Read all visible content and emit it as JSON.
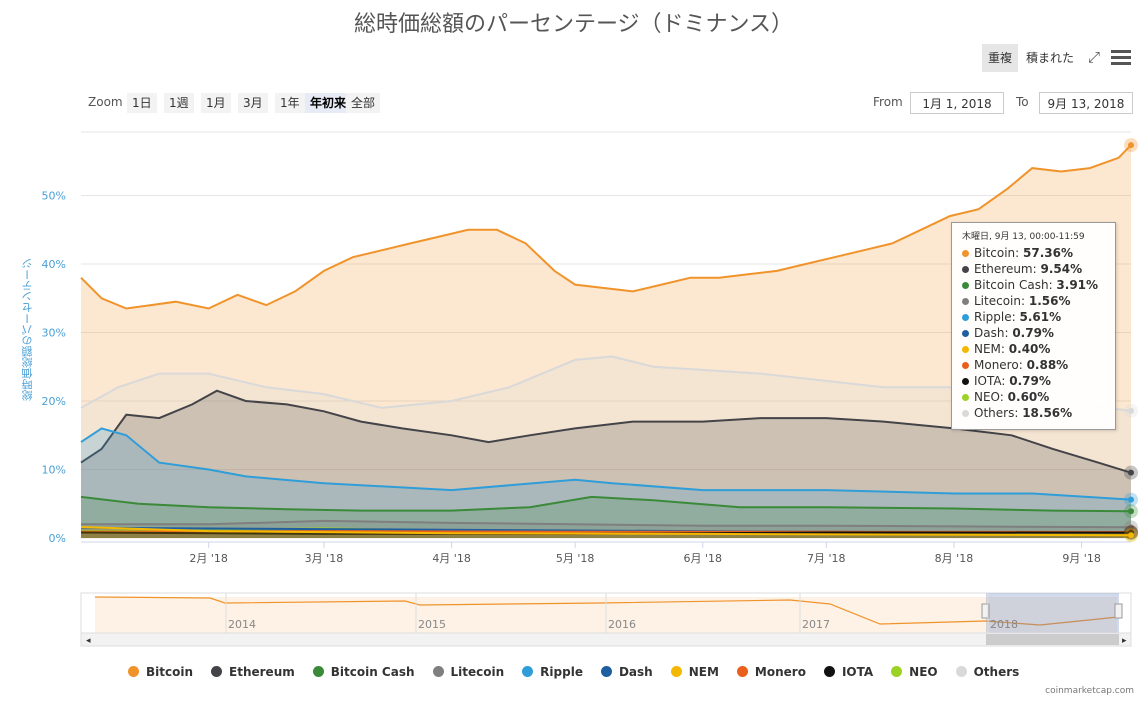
{
  "title": "総時価総額のパーセンテージ（ドミナンス）",
  "toolbar": {
    "overlap_label": "重複",
    "stacked_label": "積まれた",
    "fullscreen_icon": "fullscreen-icon",
    "menu_icon": "hamburger-menu-icon"
  },
  "zoom": {
    "label": "Zoom",
    "buttons": [
      "1日",
      "1週",
      "1月",
      "3月",
      "1年",
      "年初来",
      "全部"
    ],
    "active": "年初来"
  },
  "range": {
    "from_label": "From",
    "from_value": "1月 1, 2018",
    "to_label": "To",
    "to_value": "9月 13, 2018"
  },
  "tooltip": {
    "header": "木曜日, 9月 13, 00:00-11:59",
    "rows": [
      {
        "name": "Bitcoin",
        "value": "57.36%"
      },
      {
        "name": "Ethereum",
        "value": "9.54%"
      },
      {
        "name": "Bitcoin Cash",
        "value": "3.91%"
      },
      {
        "name": "Litecoin",
        "value": "1.56%"
      },
      {
        "name": "Ripple",
        "value": "5.61%"
      },
      {
        "name": "Dash",
        "value": "0.79%"
      },
      {
        "name": "NEM",
        "value": "0.40%"
      },
      {
        "name": "Monero",
        "value": "0.88%"
      },
      {
        "name": "IOTA",
        "value": "0.79%"
      },
      {
        "name": "NEO",
        "value": "0.60%"
      },
      {
        "name": "Others",
        "value": "18.56%"
      }
    ]
  },
  "navigator_years": [
    "2014",
    "2015",
    "2016",
    "2017",
    "2018"
  ],
  "credit": "coinmarketcap.com",
  "chart_data": {
    "type": "area",
    "title": "総時価総額のパーセンテージ（ドミナンス）",
    "ylabel": "総時価総額のパーセンテージ",
    "xlabel": "",
    "x_range": [
      "2018-01-01",
      "2018-09-13"
    ],
    "x_ticks": [
      "2月 '18",
      "3月 '18",
      "4月 '18",
      "5月 '18",
      "6月 '18",
      "7月 '18",
      "8月 '18",
      "9月 '18"
    ],
    "x_tick_dates": [
      "2018-02-01",
      "2018-03-01",
      "2018-04-01",
      "2018-05-01",
      "2018-06-01",
      "2018-07-01",
      "2018-08-01",
      "2018-09-01"
    ],
    "y_ticks": [
      "0%",
      "10%",
      "20%",
      "30%",
      "40%",
      "50%"
    ],
    "ylim": [
      0,
      60
    ],
    "grid": true,
    "legend_position": "bottom",
    "series": [
      {
        "name": "Bitcoin",
        "color": "#f0932b",
        "points": [
          [
            "2018-01-01",
            38
          ],
          [
            "2018-01-06",
            35
          ],
          [
            "2018-01-12",
            33.5
          ],
          [
            "2018-01-18",
            34
          ],
          [
            "2018-01-24",
            34.5
          ],
          [
            "2018-02-01",
            33.5
          ],
          [
            "2018-02-08",
            35.5
          ],
          [
            "2018-02-15",
            34
          ],
          [
            "2018-02-22",
            36
          ],
          [
            "2018-03-01",
            39
          ],
          [
            "2018-03-08",
            41
          ],
          [
            "2018-03-15",
            42
          ],
          [
            "2018-03-22",
            43
          ],
          [
            "2018-03-29",
            44
          ],
          [
            "2018-04-05",
            45
          ],
          [
            "2018-04-12",
            45
          ],
          [
            "2018-04-19",
            43
          ],
          [
            "2018-04-26",
            39
          ],
          [
            "2018-05-01",
            37
          ],
          [
            "2018-05-08",
            36.5
          ],
          [
            "2018-05-15",
            36
          ],
          [
            "2018-05-22",
            37
          ],
          [
            "2018-05-29",
            38
          ],
          [
            "2018-06-05",
            38
          ],
          [
            "2018-06-12",
            38.5
          ],
          [
            "2018-06-19",
            39
          ],
          [
            "2018-06-26",
            40
          ],
          [
            "2018-07-03",
            41
          ],
          [
            "2018-07-10",
            42
          ],
          [
            "2018-07-17",
            43
          ],
          [
            "2018-07-24",
            45
          ],
          [
            "2018-07-31",
            47
          ],
          [
            "2018-08-07",
            48
          ],
          [
            "2018-08-14",
            51
          ],
          [
            "2018-08-20",
            54
          ],
          [
            "2018-08-27",
            53.5
          ],
          [
            "2018-09-03",
            54
          ],
          [
            "2018-09-10",
            55.5
          ],
          [
            "2018-09-13",
            57.36
          ]
        ]
      },
      {
        "name": "Ethereum",
        "color": "#434348",
        "points": [
          [
            "2018-01-01",
            11
          ],
          [
            "2018-01-06",
            13
          ],
          [
            "2018-01-12",
            18
          ],
          [
            "2018-01-20",
            17.5
          ],
          [
            "2018-01-28",
            19.5
          ],
          [
            "2018-02-03",
            21.5
          ],
          [
            "2018-02-10",
            20
          ],
          [
            "2018-02-20",
            19.5
          ],
          [
            "2018-03-01",
            18.5
          ],
          [
            "2018-03-10",
            17
          ],
          [
            "2018-03-20",
            16
          ],
          [
            "2018-04-01",
            15
          ],
          [
            "2018-04-10",
            14
          ],
          [
            "2018-04-20",
            15
          ],
          [
            "2018-05-01",
            16
          ],
          [
            "2018-05-15",
            17
          ],
          [
            "2018-06-01",
            17
          ],
          [
            "2018-06-15",
            17.5
          ],
          [
            "2018-07-01",
            17.5
          ],
          [
            "2018-07-15",
            17
          ],
          [
            "2018-08-01",
            16
          ],
          [
            "2018-08-15",
            15
          ],
          [
            "2018-08-25",
            13
          ],
          [
            "2018-09-05",
            11
          ],
          [
            "2018-09-13",
            9.54
          ]
        ]
      },
      {
        "name": "Bitcoin Cash",
        "color": "#3a8a3a",
        "points": [
          [
            "2018-01-01",
            6
          ],
          [
            "2018-01-15",
            5
          ],
          [
            "2018-02-01",
            4.5
          ],
          [
            "2018-02-20",
            4.2
          ],
          [
            "2018-03-10",
            4
          ],
          [
            "2018-04-01",
            4
          ],
          [
            "2018-04-20",
            4.5
          ],
          [
            "2018-05-05",
            6
          ],
          [
            "2018-05-20",
            5.5
          ],
          [
            "2018-06-10",
            4.5
          ],
          [
            "2018-07-01",
            4.5
          ],
          [
            "2018-08-01",
            4.3
          ],
          [
            "2018-08-25",
            4
          ],
          [
            "2018-09-13",
            3.91
          ]
        ]
      },
      {
        "name": "Litecoin",
        "color": "#7f7f7f",
        "points": [
          [
            "2018-01-01",
            2
          ],
          [
            "2018-02-01",
            2
          ],
          [
            "2018-03-01",
            2.5
          ],
          [
            "2018-04-01",
            2.2
          ],
          [
            "2018-05-01",
            2
          ],
          [
            "2018-06-01",
            1.8
          ],
          [
            "2018-07-01",
            1.8
          ],
          [
            "2018-08-01",
            1.7
          ],
          [
            "2018-09-13",
            1.56
          ]
        ]
      },
      {
        "name": "Ripple",
        "color": "#2f9dd8",
        "points": [
          [
            "2018-01-01",
            14
          ],
          [
            "2018-01-06",
            16
          ],
          [
            "2018-01-12",
            15
          ],
          [
            "2018-01-20",
            11
          ],
          [
            "2018-02-01",
            10
          ],
          [
            "2018-02-10",
            9
          ],
          [
            "2018-03-01",
            8
          ],
          [
            "2018-04-01",
            7
          ],
          [
            "2018-05-01",
            8.5
          ],
          [
            "2018-05-10",
            8
          ],
          [
            "2018-06-01",
            7
          ],
          [
            "2018-07-01",
            7
          ],
          [
            "2018-08-01",
            6.5
          ],
          [
            "2018-08-20",
            6.5
          ],
          [
            "2018-09-13",
            5.61
          ]
        ]
      },
      {
        "name": "Dash",
        "color": "#1f5fa0",
        "points": [
          [
            "2018-01-01",
            1.5
          ],
          [
            "2018-03-01",
            1.3
          ],
          [
            "2018-05-01",
            1.1
          ],
          [
            "2018-07-01",
            0.9
          ],
          [
            "2018-09-13",
            0.79
          ]
        ]
      },
      {
        "name": "NEM",
        "color": "#f5b800",
        "points": [
          [
            "2018-01-01",
            1.6
          ],
          [
            "2018-02-01",
            1
          ],
          [
            "2018-04-01",
            0.7
          ],
          [
            "2018-06-01",
            0.6
          ],
          [
            "2018-09-13",
            0.4
          ]
        ]
      },
      {
        "name": "Monero",
        "color": "#e8601c",
        "points": [
          [
            "2018-01-01",
            0.9
          ],
          [
            "2018-03-01",
            1
          ],
          [
            "2018-05-01",
            0.9
          ],
          [
            "2018-07-01",
            0.9
          ],
          [
            "2018-09-13",
            0.88
          ]
        ]
      },
      {
        "name": "IOTA",
        "color": "#111111",
        "points": [
          [
            "2018-01-01",
            0.8
          ],
          [
            "2018-03-01",
            0.6
          ],
          [
            "2018-05-01",
            0.6
          ],
          [
            "2018-07-01",
            0.8
          ],
          [
            "2018-09-13",
            0.79
          ]
        ]
      },
      {
        "name": "NEO",
        "color": "#9cd224",
        "points": [
          [
            "2018-01-01",
            1
          ],
          [
            "2018-02-01",
            1.2
          ],
          [
            "2018-03-01",
            1.4
          ],
          [
            "2018-04-01",
            1.1
          ],
          [
            "2018-05-01",
            1
          ],
          [
            "2018-07-01",
            0.8
          ],
          [
            "2018-09-13",
            0.6
          ]
        ]
      },
      {
        "name": "Others",
        "color": "#d9d9d9",
        "points": [
          [
            "2018-01-01",
            19
          ],
          [
            "2018-01-10",
            22
          ],
          [
            "2018-01-20",
            24
          ],
          [
            "2018-02-01",
            24
          ],
          [
            "2018-02-15",
            22
          ],
          [
            "2018-03-01",
            21
          ],
          [
            "2018-03-15",
            19
          ],
          [
            "2018-04-01",
            20
          ],
          [
            "2018-04-15",
            22
          ],
          [
            "2018-05-01",
            26
          ],
          [
            "2018-05-10",
            26.5
          ],
          [
            "2018-05-20",
            25
          ],
          [
            "2018-06-15",
            24
          ],
          [
            "2018-07-15",
            22
          ],
          [
            "2018-08-01",
            22
          ],
          [
            "2018-08-15",
            21
          ],
          [
            "2018-08-25",
            20
          ],
          [
            "2018-09-13",
            18.56
          ]
        ]
      }
    ]
  }
}
